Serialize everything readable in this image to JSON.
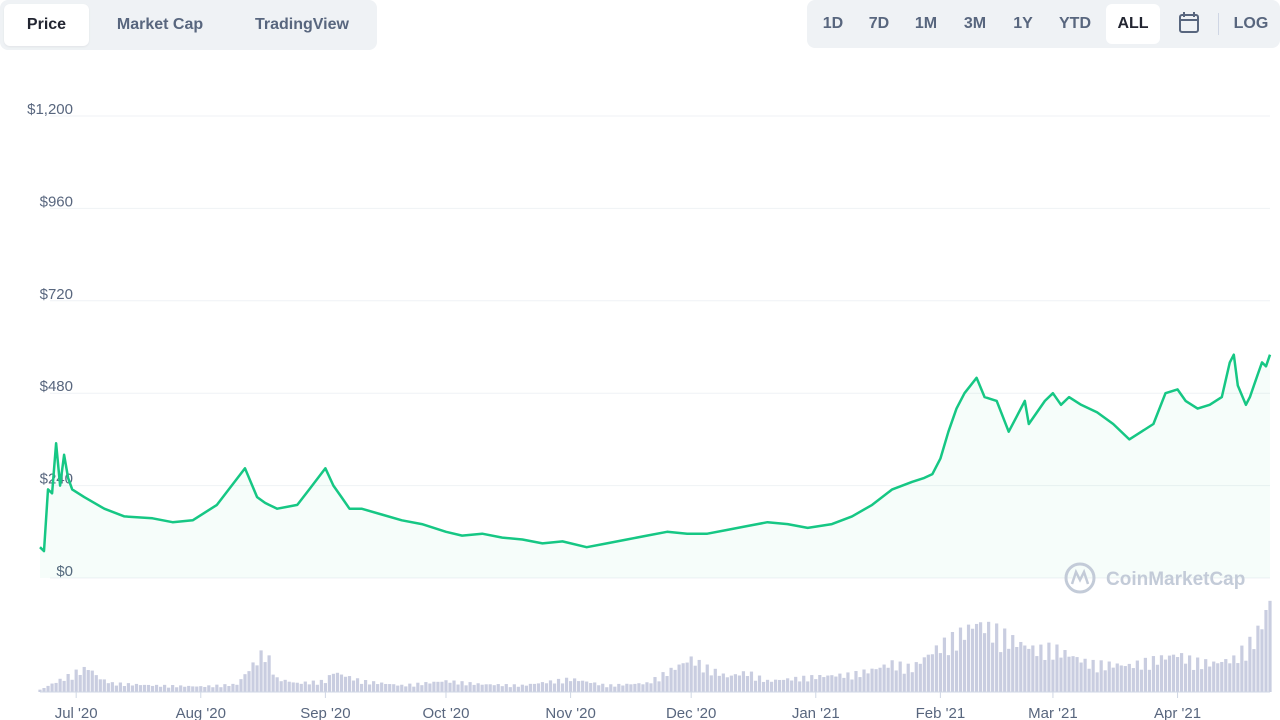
{
  "tabs": [
    {
      "label": "Price",
      "active": true
    },
    {
      "label": "Market Cap",
      "active": false
    },
    {
      "label": "TradingView",
      "active": false
    }
  ],
  "ranges": [
    {
      "label": "1D",
      "active": false
    },
    {
      "label": "7D",
      "active": false
    },
    {
      "label": "1M",
      "active": false
    },
    {
      "label": "3M",
      "active": false
    },
    {
      "label": "1Y",
      "active": false
    },
    {
      "label": "YTD",
      "active": false
    },
    {
      "label": "ALL",
      "active": true
    }
  ],
  "calendar_icon": "calendar-icon",
  "log_label": "LOG",
  "watermark": "CoinMarketCap",
  "colors": {
    "line": "#16c784",
    "fill": "#16c784",
    "volume": "#c9cde0",
    "grid": "#eff2f5",
    "text": "#58667e"
  },
  "chart_data": {
    "type": "line",
    "title": "",
    "xlabel": "",
    "ylabel": "",
    "ylim": [
      0,
      1200
    ],
    "y_ticks": [
      {
        "value": 0,
        "label": "$0"
      },
      {
        "value": 240,
        "label": "$240"
      },
      {
        "value": 480,
        "label": "$480"
      },
      {
        "value": 720,
        "label": "$720"
      },
      {
        "value": 960,
        "label": "$960"
      },
      {
        "value": 1200,
        "label": "$1,200"
      }
    ],
    "x_ticks": [
      {
        "date": "2020-07-01",
        "label": "Jul '20"
      },
      {
        "date": "2020-08-01",
        "label": "Aug '20"
      },
      {
        "date": "2020-09-01",
        "label": "Sep '20"
      },
      {
        "date": "2020-10-01",
        "label": "Oct '20"
      },
      {
        "date": "2020-11-01",
        "label": "Nov '20"
      },
      {
        "date": "2020-12-01",
        "label": "Dec '20"
      },
      {
        "date": "2021-01-01",
        "label": "Jan '21"
      },
      {
        "date": "2021-02-01",
        "label": "Feb '21"
      },
      {
        "date": "2021-03-01",
        "label": "Mar '21"
      },
      {
        "date": "2021-04-01",
        "label": "Apr '21"
      }
    ],
    "xlim": [
      "2020-06-22",
      "2021-04-24"
    ],
    "grid": true,
    "legend": "none",
    "series": [
      {
        "x": [
          "2020-06-22",
          "2020-06-23",
          "2020-06-24",
          "2020-06-25",
          "2020-06-26",
          "2020-06-27",
          "2020-06-28",
          "2020-06-29",
          "2020-06-30",
          "2020-07-03",
          "2020-07-08",
          "2020-07-13",
          "2020-07-20",
          "2020-07-25",
          "2020-07-30",
          "2020-08-05",
          "2020-08-12",
          "2020-08-15",
          "2020-08-17",
          "2020-08-18",
          "2020-08-20",
          "2020-08-25",
          "2020-08-28",
          "2020-09-01",
          "2020-09-03",
          "2020-09-05",
          "2020-09-07",
          "2020-09-10",
          "2020-09-15",
          "2020-09-20",
          "2020-09-25",
          "2020-10-01",
          "2020-10-05",
          "2020-10-10",
          "2020-10-15",
          "2020-10-20",
          "2020-10-25",
          "2020-10-30",
          "2020-11-05",
          "2020-11-10",
          "2020-11-15",
          "2020-11-20",
          "2020-11-25",
          "2020-11-30",
          "2020-12-05",
          "2020-12-10",
          "2020-12-15",
          "2020-12-20",
          "2020-12-25",
          "2020-12-30",
          "2021-01-05",
          "2021-01-10",
          "2021-01-15",
          "2021-01-20",
          "2021-01-25",
          "2021-01-28",
          "2021-01-30",
          "2021-02-01",
          "2021-02-03",
          "2021-02-05",
          "2021-02-07",
          "2021-02-10",
          "2021-02-12",
          "2021-02-15",
          "2021-02-18",
          "2021-02-20",
          "2021-02-22",
          "2021-02-23",
          "2021-02-25",
          "2021-02-27",
          "2021-03-01",
          "2021-03-03",
          "2021-03-05",
          "2021-03-08",
          "2021-03-12",
          "2021-03-16",
          "2021-03-20",
          "2021-03-23",
          "2021-03-26",
          "2021-03-29",
          "2021-04-01",
          "2021-04-03",
          "2021-04-06",
          "2021-04-09",
          "2021-04-12",
          "2021-04-14",
          "2021-04-15",
          "2021-04-16",
          "2021-04-18",
          "2021-04-19",
          "2021-04-20",
          "2021-04-21",
          "2021-04-22",
          "2021-04-23",
          "2021-04-24"
        ],
        "y": [
          80,
          70,
          230,
          220,
          350,
          240,
          320,
          260,
          230,
          210,
          180,
          160,
          155,
          145,
          150,
          190,
          285,
          210,
          195,
          190,
          180,
          190,
          230,
          285,
          240,
          210,
          180,
          180,
          165,
          150,
          140,
          120,
          110,
          115,
          105,
          100,
          90,
          95,
          80,
          90,
          100,
          110,
          120,
          115,
          115,
          125,
          135,
          145,
          140,
          130,
          140,
          160,
          190,
          230,
          250,
          260,
          270,
          310,
          380,
          440,
          480,
          520,
          470,
          460,
          380,
          420,
          460,
          400,
          430,
          460,
          480,
          450,
          470,
          450,
          430,
          400,
          360,
          380,
          400,
          480,
          490,
          460,
          440,
          450,
          470,
          560,
          580,
          500,
          450,
          470,
          500,
          530,
          560,
          550,
          580
        ]
      }
    ],
    "volume": {
      "x": [
        "2020-06-22",
        "2020-07-01",
        "2020-07-04",
        "2020-07-07",
        "2020-07-10",
        "2020-07-20",
        "2020-08-01",
        "2020-08-10",
        "2020-08-17",
        "2020-08-20",
        "2020-08-25",
        "2020-09-01",
        "2020-09-03",
        "2020-09-10",
        "2020-09-20",
        "2020-10-01",
        "2020-10-10",
        "2020-10-20",
        "2020-11-01",
        "2020-11-10",
        "2020-11-20",
        "2020-12-01",
        "2020-12-05",
        "2020-12-10",
        "2020-12-15",
        "2020-12-20",
        "2021-01-01",
        "2021-01-10",
        "2021-01-15",
        "2021-01-20",
        "2021-01-25",
        "2021-02-01",
        "2021-02-05",
        "2021-02-10",
        "2021-02-15",
        "2021-02-20",
        "2021-02-25",
        "2021-03-01",
        "2021-03-10",
        "2021-03-20",
        "2021-04-01",
        "2021-04-05",
        "2021-04-10",
        "2021-04-15",
        "2021-04-20",
        "2021-04-22",
        "2021-04-24"
      ],
      "y": [
        0.02,
        0.18,
        0.22,
        0.12,
        0.08,
        0.06,
        0.05,
        0.07,
        0.38,
        0.12,
        0.08,
        0.1,
        0.18,
        0.1,
        0.06,
        0.1,
        0.07,
        0.06,
        0.12,
        0.06,
        0.08,
        0.3,
        0.22,
        0.14,
        0.18,
        0.1,
        0.14,
        0.16,
        0.2,
        0.26,
        0.22,
        0.42,
        0.5,
        0.62,
        0.55,
        0.45,
        0.38,
        0.4,
        0.26,
        0.24,
        0.34,
        0.28,
        0.26,
        0.3,
        0.48,
        0.62,
        0.82
      ]
    }
  }
}
